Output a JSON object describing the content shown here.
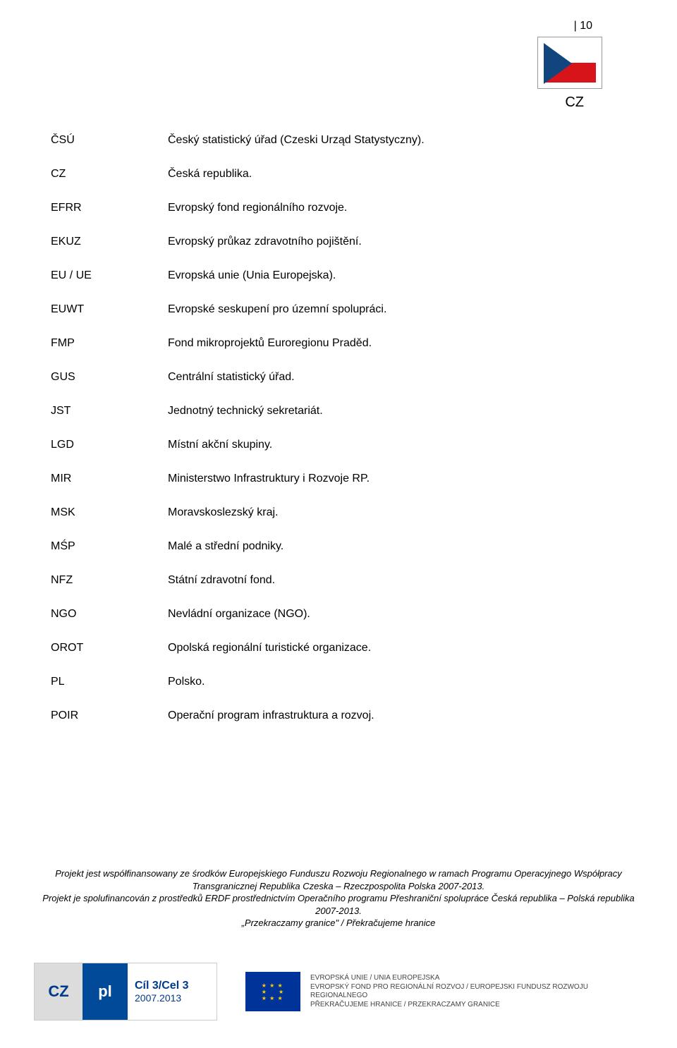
{
  "page_number": "| 10",
  "country_code": "CZ",
  "flag": {
    "white": "#ffffff",
    "red": "#d7141a",
    "blue": "#11457e"
  },
  "glossary": [
    {
      "abbr": "ČSÚ",
      "def": "Český statistický úřad (Czeski Urząd Statystyczny)."
    },
    {
      "abbr": "CZ",
      "def": "Česká republika."
    },
    {
      "abbr": "EFRR",
      "def": "Evropský fond regionálního rozvoje."
    },
    {
      "abbr": "EKUZ",
      "def": "Evropský průkaz zdravotního pojištění."
    },
    {
      "abbr": "EU / UE",
      "def": "Evropská unie (Unia Europejska)."
    },
    {
      "abbr": "EUWT",
      "def": "Evropské seskupení pro územní spolupráci."
    },
    {
      "abbr": "FMP",
      "def": "Fond mikroprojektů Euroregionu Praděd."
    },
    {
      "abbr": "GUS",
      "def": "Centrální statistický úřad."
    },
    {
      "abbr": "JST",
      "def": "Jednotný technický sekretariát."
    },
    {
      "abbr": "LGD",
      "def": "Místní akční skupiny."
    },
    {
      "abbr": "MIR",
      "def": "Ministerstwo Infrastruktury i Rozvoje RP."
    },
    {
      "abbr": "MSK",
      "def": "Moravskoslezský kraj."
    },
    {
      "abbr": "MŚP",
      "def": "Malé a střední podniky."
    },
    {
      "abbr": "NFZ",
      "def": "Státní zdravotní fond."
    },
    {
      "abbr": "NGO",
      "def": "Nevládní organizace (NGO)."
    },
    {
      "abbr": "OROT",
      "def": "Opolská regionální turistické organizace."
    },
    {
      "abbr": "PL",
      "def": "Polsko."
    },
    {
      "abbr": "POIR",
      "def": "Operační program infrastruktura a rozvoj."
    }
  ],
  "footer": {
    "line1": "Projekt jest współfinansowany ze środków Europejskiego Funduszu Rozwoju Regionalnego w ramach Programu Operacyjnego Współpracy Transgranicznej Republika Czeska – Rzeczpospolita Polska 2007-2013.",
    "line2": "Projekt je spolufinancován z prostředků ERDF prostřednictvím Operačního programu Přeshraniční spolupráce Česká republika – Polská republika 2007-2013.",
    "line3": "„Przekraczamy granice\" / Překračujeme hranice"
  },
  "logo1": {
    "cz": "CZ",
    "pl": "pl",
    "cil_bold": "Cíl 3/Cel 3",
    "cil_years": "2007.2013"
  },
  "logo2": {
    "eu_line1": "EVROPSKÁ UNIE / UNIA EUROPEJSKA",
    "eu_line2": "EVROPSKÝ FOND PRO REGIONÁLNÍ ROZVOJ / EUROPEJSKI FUNDUSZ ROZWOJU REGIONALNEGO",
    "eu_line3": "PŘEKRAČUJEME HRANICE / PRZEKRACZAMY GRANICE"
  },
  "colors": {
    "eu_blue": "#003399",
    "eu_gold": "#ffcc00",
    "logo_blue": "#004a99",
    "text": "#000000",
    "footer_text": "#000000"
  }
}
